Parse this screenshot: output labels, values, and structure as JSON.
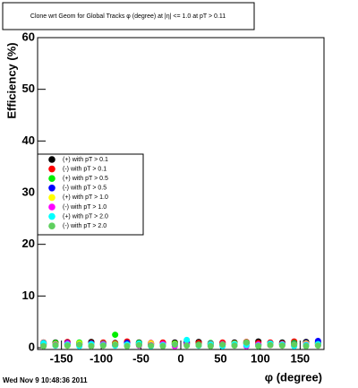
{
  "chart_data": {
    "type": "scatter",
    "title": "Clone wrt Geom for Global Tracks φ (degree) at |η| <= 1.0 at pT > 0.11",
    "x_label": "φ (degree)",
    "y_label": "Efficiency (%)",
    "footer": "Wed Nov  9 10:48:36 2011",
    "xlim": [
      -180,
      180
    ],
    "ylim": [
      0,
      60
    ],
    "xticks": [
      -150,
      -100,
      -50,
      0,
      50,
      100,
      150
    ],
    "yticks": [
      0,
      10,
      20,
      30,
      40,
      50,
      60
    ],
    "x": [
      -172.5,
      -157.5,
      -142.5,
      -127.5,
      -112.5,
      -97.5,
      -82.5,
      -67.5,
      -52.5,
      -37.5,
      -22.5,
      -7.5,
      7.5,
      22.5,
      37.5,
      52.5,
      67.5,
      82.5,
      97.5,
      112.5,
      127.5,
      142.5,
      157.5,
      172.5
    ],
    "series": [
      {
        "name": "(+) with pT > 0.1",
        "color": "#000000",
        "values": [
          0.8,
          1.0,
          0.7,
          0.9,
          1.1,
          0.6,
          0.9,
          0.8,
          1.0,
          0.7,
          0.9,
          1.0,
          0.8,
          1.1,
          0.7,
          0.9,
          1.0,
          0.8,
          1.2,
          0.9,
          1.0,
          0.8,
          1.1,
          0.9
        ]
      },
      {
        "name": "(-) with pT > 0.1",
        "color": "#ff0000",
        "values": [
          1.0,
          0.8,
          1.1,
          0.7,
          0.9,
          1.0,
          0.8,
          1.2,
          0.7,
          0.9,
          1.0,
          0.8,
          1.1,
          0.9,
          0.7,
          1.0,
          0.8,
          1.1,
          0.9,
          1.0,
          0.8,
          1.2,
          0.9,
          1.0
        ]
      },
      {
        "name": "(+) with pT > 0.5",
        "color": "#00ee00",
        "values": [
          0.6,
          0.9,
          0.5,
          1.0,
          0.7,
          0.8,
          2.5,
          0.6,
          0.9,
          0.7,
          0.5,
          0.8,
          1.0,
          0.6,
          0.9,
          0.7,
          0.8,
          1.0,
          0.6,
          0.8,
          0.7,
          0.9,
          0.6,
          0.8
        ]
      },
      {
        "name": "(-) with pT > 0.5",
        "color": "#0000ff",
        "values": [
          0.7,
          0.5,
          0.9,
          0.6,
          0.8,
          0.7,
          0.5,
          0.9,
          0.6,
          0.8,
          0.7,
          0.6,
          0.9,
          0.5,
          0.8,
          0.6,
          0.7,
          0.9,
          0.5,
          0.8,
          0.6,
          0.7,
          0.9,
          1.3
        ]
      },
      {
        "name": "(+) with pT > 1.0",
        "color": "#ffff00",
        "values": [
          0.5,
          0.7,
          0.4,
          0.8,
          0.6,
          0.5,
          0.7,
          0.4,
          0.6,
          0.8,
          0.5,
          0.7,
          0.6,
          0.4,
          0.7,
          0.5,
          0.8,
          0.6,
          0.4,
          0.7,
          0.5,
          0.6,
          0.8,
          0.5
        ]
      },
      {
        "name": "(-) with pT > 1.0",
        "color": "#ff00ff",
        "values": [
          0.4,
          0.6,
          0.8,
          0.5,
          0.3,
          0.7,
          0.5,
          0.6,
          0.4,
          0.5,
          0.7,
          0.3,
          0.6,
          0.5,
          0.4,
          0.7,
          0.5,
          0.3,
          0.6,
          0.5,
          0.7,
          0.4,
          0.6,
          0.5
        ]
      },
      {
        "name": "(+) with pT > 2.0",
        "color": "#00ffff",
        "values": [
          0.9,
          0.4,
          0.6,
          0.3,
          0.7,
          0.5,
          0.4,
          0.6,
          0.8,
          0.3,
          0.5,
          0.6,
          1.5,
          0.4,
          0.6,
          0.3,
          0.7,
          0.5,
          0.4,
          0.8,
          0.6,
          0.3,
          0.5,
          0.7
        ]
      },
      {
        "name": "(-) with pT > 2.0",
        "color": "#5fcf5f",
        "values": [
          0.3,
          0.5,
          0.4,
          0.6,
          0.3,
          0.4,
          0.6,
          0.3,
          0.5,
          0.4,
          0.3,
          0.6,
          0.4,
          0.5,
          0.3,
          0.6,
          0.4,
          1.0,
          0.3,
          0.5,
          0.4,
          0.6,
          0.3,
          0.4
        ]
      }
    ],
    "legend": "left",
    "grid": false
  }
}
